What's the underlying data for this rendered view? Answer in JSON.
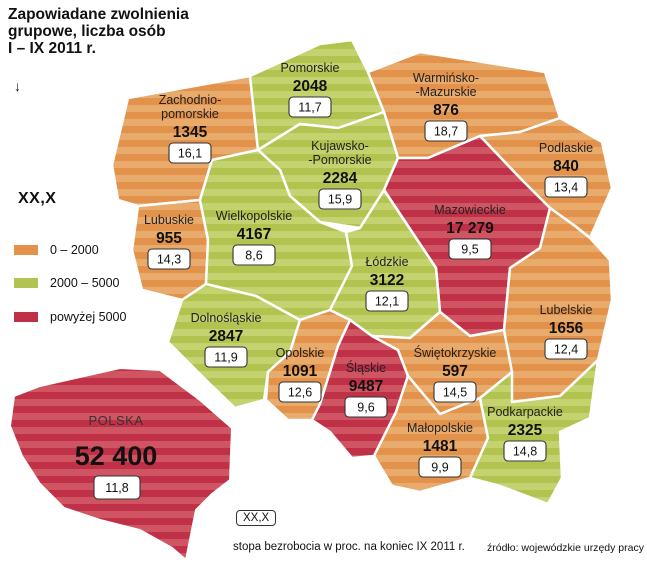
{
  "title": {
    "line1": "Zapowiadane zwolnienia",
    "line2": "grupowe, liczba osób",
    "line3": "I – IX 2011 r."
  },
  "colors": {
    "low": "#e2924a",
    "low_stripe": "#e9ab6c",
    "mid": "#b2c34f",
    "mid_stripe": "#c5d270",
    "high": "#c03148",
    "high_stripe": "#cf5562",
    "border": "#ffffff"
  },
  "legend": {
    "format_label": "XX,X",
    "items": [
      {
        "label": "0 – 2000",
        "category": "low"
      },
      {
        "label": "2000 – 5000",
        "category": "mid"
      },
      {
        "label": "powyżej 5000",
        "category": "high"
      }
    ]
  },
  "regions": [
    {
      "name": "Zachodnio-",
      "name2": "pomorskie",
      "value": "1345",
      "rate": "16,1",
      "category": "low"
    },
    {
      "name": "Pomorskie",
      "name2": "",
      "value": "2048",
      "rate": "11,7",
      "category": "mid"
    },
    {
      "name": "Warmińsko-",
      "name2": "-Mazurskie",
      "value": "876",
      "rate": "18,7",
      "category": "low"
    },
    {
      "name": "Podlaskie",
      "name2": "",
      "value": "840",
      "rate": "13,4",
      "category": "low"
    },
    {
      "name": "Kujawsko-",
      "name2": "-Pomorskie",
      "value": "2284",
      "rate": "15,9",
      "category": "mid"
    },
    {
      "name": "Lubuskie",
      "name2": "",
      "value": "955",
      "rate": "14,3",
      "category": "low"
    },
    {
      "name": "Wielkopolskie",
      "name2": "",
      "value": "4167",
      "rate": "8,6",
      "category": "mid"
    },
    {
      "name": "Mazowieckie",
      "name2": "",
      "value": "17 279",
      "rate": "9,5",
      "category": "high"
    },
    {
      "name": "Łódzkie",
      "name2": "",
      "value": "3122",
      "rate": "12,1",
      "category": "mid"
    },
    {
      "name": "Dolnośląskie",
      "name2": "",
      "value": "2847",
      "rate": "11,9",
      "category": "mid"
    },
    {
      "name": "Lubelskie",
      "name2": "",
      "value": "1656",
      "rate": "12,4",
      "category": "low"
    },
    {
      "name": "Opolskie",
      "name2": "",
      "value": "1091",
      "rate": "12,6",
      "category": "low"
    },
    {
      "name": "Śląskie",
      "name2": "",
      "value": "9487",
      "rate": "9,6",
      "category": "high"
    },
    {
      "name": "Świętokrzyskie",
      "name2": "",
      "value": "597",
      "rate": "14,5",
      "category": "low"
    },
    {
      "name": "Małopolskie",
      "name2": "",
      "value": "1481",
      "rate": "9,9",
      "category": "low"
    },
    {
      "name": "Podkarpackie",
      "name2": "",
      "value": "2325",
      "rate": "14,8",
      "category": "mid"
    }
  ],
  "poland": {
    "name": "POLSKA",
    "value": "52 400",
    "rate": "11,8",
    "category": "high"
  },
  "footer": {
    "format_label": "XX,X",
    "note": "stopa bezrobocia w proc. na koniec IX 2011 r.",
    "source": "źródło: wojewódzkie urzędy pracy"
  }
}
